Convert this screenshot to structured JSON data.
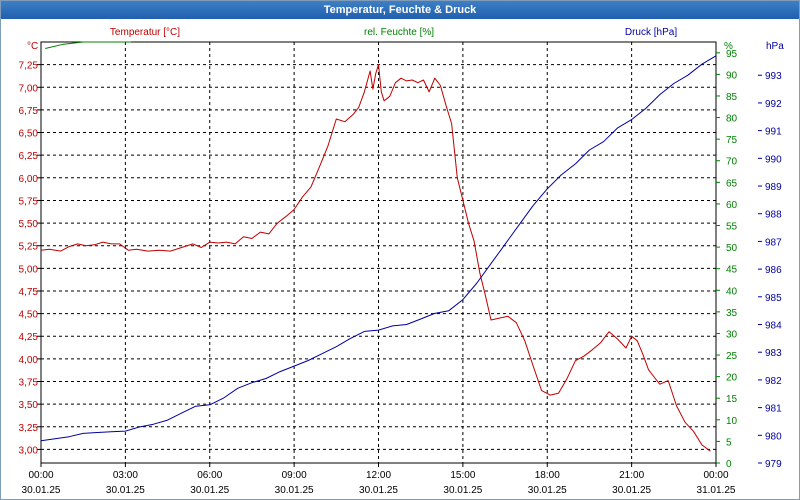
{
  "window": {
    "title": "Temperatur, Feuchte & Druck"
  },
  "colors": {
    "temperature": "#c00000",
    "humidity": "#008000",
    "pressure": "#0000a0",
    "grid": "#000000",
    "title_bar": "#2a6db5"
  },
  "chart_data": {
    "type": "line",
    "title": "Temperatur, Feuchte & Druck",
    "x_unit": "hours since 30.01.25 00:00",
    "xlim": [
      0,
      24
    ],
    "x_ticks": [
      {
        "time": "00:00",
        "date": "30.01.25"
      },
      {
        "time": "03:00",
        "date": "30.01.25"
      },
      {
        "time": "06:00",
        "date": "30.01.25"
      },
      {
        "time": "09:00",
        "date": "30.01.25"
      },
      {
        "time": "12:00",
        "date": "30.01.25"
      },
      {
        "time": "15:00",
        "date": "30.01.25"
      },
      {
        "time": "18:00",
        "date": "30.01.25"
      },
      {
        "time": "21:00",
        "date": "30.01.25"
      },
      {
        "time": "00:00",
        "date": "31.01.25"
      }
    ],
    "axes": {
      "temperature": {
        "label": "Temperatur [°C]",
        "unit": "°C",
        "ylim": [
          2.85,
          7.5
        ],
        "ticks": [
          "3,00",
          "3,25",
          "3,50",
          "3,75",
          "4,00",
          "4,25",
          "4,50",
          "4,75",
          "5,00",
          "5,25",
          "5,50",
          "5,75",
          "6,00",
          "6,25",
          "6,50",
          "6,75",
          "7,00",
          "7,25"
        ]
      },
      "humidity": {
        "label": "rel. Feuchte [%]",
        "unit": "%",
        "ylim": [
          0,
          97.5
        ],
        "ticks": [
          "0",
          "5",
          "10",
          "15",
          "20",
          "25",
          "30",
          "35",
          "40",
          "45",
          "50",
          "55",
          "60",
          "65",
          "70",
          "75",
          "80",
          "85",
          "90",
          "95"
        ]
      },
      "pressure": {
        "label": "Druck [hPa]",
        "unit": "hPa",
        "ylim": [
          979,
          994.2
        ],
        "ticks": [
          "979",
          "980",
          "981",
          "982",
          "983",
          "984",
          "985",
          "986",
          "987",
          "988",
          "989",
          "990",
          "991",
          "992",
          "993"
        ]
      }
    },
    "series": [
      {
        "name": "Temperatur",
        "axis": "temperature",
        "x": [
          0,
          0.3,
          0.7,
          1,
          1.3,
          1.6,
          1.9,
          2.2,
          2.5,
          2.8,
          3.1,
          3.4,
          3.8,
          4.2,
          4.6,
          5,
          5.4,
          5.7,
          6,
          6.3,
          6.6,
          6.9,
          7.2,
          7.5,
          7.8,
          8.1,
          8.4,
          8.7,
          9,
          9.3,
          9.6,
          9.9,
          10.2,
          10.5,
          10.8,
          11.1,
          11.3,
          11.5,
          11.7,
          11.8,
          11.9,
          12,
          12.1,
          12.2,
          12.4,
          12.6,
          12.8,
          13,
          13.2,
          13.4,
          13.6,
          13.8,
          14,
          14.2,
          14.4,
          14.6,
          14.8,
          15,
          15.2,
          15.4,
          15.6,
          15.8,
          16,
          16.3,
          16.6,
          16.9,
          17.2,
          17.5,
          17.8,
          18.1,
          18.4,
          18.7,
          19,
          19.3,
          19.6,
          19.9,
          20.2,
          20.5,
          20.8,
          21,
          21.2,
          21.4,
          21.6,
          21.8,
          22,
          22.3,
          22.6,
          22.9,
          23.2,
          23.5,
          23.8
        ],
        "values": [
          5.2,
          5.21,
          5.19,
          5.24,
          5.27,
          5.25,
          5.26,
          5.29,
          5.27,
          5.27,
          5.2,
          5.21,
          5.19,
          5.2,
          5.19,
          5.23,
          5.27,
          5.23,
          5.29,
          5.28,
          5.29,
          5.27,
          5.35,
          5.33,
          5.4,
          5.38,
          5.5,
          5.57,
          5.65,
          5.79,
          5.9,
          6.12,
          6.35,
          6.65,
          6.62,
          6.7,
          6.78,
          6.95,
          7.18,
          6.98,
          7.15,
          7.25,
          6.95,
          6.85,
          6.9,
          7.05,
          7.1,
          7.07,
          7.08,
          7.05,
          7.08,
          6.95,
          7.1,
          7.02,
          6.8,
          6.6,
          6.0,
          5.75,
          5.5,
          5.3,
          4.95,
          4.7,
          4.43,
          4.45,
          4.47,
          4.4,
          4.2,
          3.92,
          3.65,
          3.6,
          3.62,
          3.78,
          3.98,
          4.03,
          4.1,
          4.18,
          4.3,
          4.22,
          4.12,
          4.25,
          4.2,
          4.05,
          3.88,
          3.8,
          3.72,
          3.76,
          3.48,
          3.3,
          3.2,
          3.05,
          2.98
        ]
      },
      {
        "name": "rel. Feuchte",
        "axis": "humidity",
        "x": [
          0.15,
          0.8,
          1.5,
          2.2,
          2.8,
          3.2
        ],
        "values": [
          96,
          97,
          97.5,
          97.5,
          97.5,
          97.5
        ]
      },
      {
        "name": "Druck",
        "axis": "pressure",
        "x": [
          0,
          1,
          1.5,
          2,
          2.5,
          3,
          3.5,
          4,
          4.5,
          5,
          5.5,
          6,
          6.5,
          7,
          7.5,
          8,
          8.5,
          9,
          9.5,
          10,
          10.5,
          11,
          11.5,
          12,
          12.5,
          13,
          13.5,
          14,
          14.5,
          15,
          15.5,
          16,
          16.5,
          17,
          17.5,
          18,
          18.5,
          19,
          19.5,
          20,
          20.5,
          21,
          21.5,
          22,
          22.5,
          23,
          23.5,
          24
        ],
        "values": [
          979.8,
          979.95,
          980.07,
          980.1,
          980.13,
          980.15,
          980.3,
          980.4,
          980.55,
          980.8,
          981.05,
          981.1,
          981.35,
          981.7,
          981.9,
          982.05,
          982.3,
          982.5,
          982.7,
          982.95,
          983.2,
          983.5,
          983.75,
          983.8,
          983.95,
          984.0,
          984.2,
          984.4,
          984.5,
          984.9,
          985.5,
          986.2,
          986.9,
          987.6,
          988.3,
          988.9,
          989.4,
          989.8,
          990.3,
          990.6,
          991.1,
          991.4,
          991.8,
          992.3,
          992.7,
          993.0,
          993.4,
          993.7
        ]
      }
    ]
  }
}
